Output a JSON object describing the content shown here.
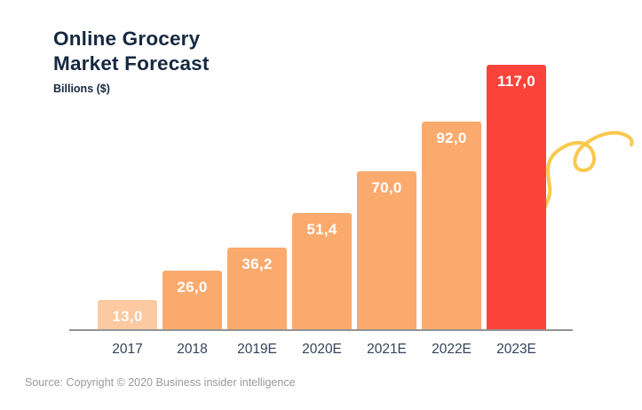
{
  "header": {
    "title_line1": "Online Grocery",
    "title_line2": "Market Forecast",
    "subtitle": "Billions ($)"
  },
  "chart_data": {
    "type": "bar",
    "title": "Online Grocery Market Forecast",
    "ylabel": "Billions ($)",
    "xlabel": "",
    "categories": [
      "2017",
      "2018",
      "2019E",
      "2020E",
      "2021E",
      "2022E",
      "2023E"
    ],
    "values": [
      13.0,
      26.0,
      36.2,
      51.4,
      70.0,
      92.0,
      117.0
    ],
    "value_labels": [
      "13,0",
      "26,0",
      "36,2",
      "51,4",
      "70,0",
      "92,0",
      "117,0"
    ],
    "bar_colors": [
      "#FCC9A0",
      "#FBAA6E",
      "#FBAA6E",
      "#FBAA6E",
      "#FBAA6E",
      "#FBAA6E",
      "#FB433C"
    ],
    "ylim": [
      0,
      120
    ],
    "grid": false,
    "legend": false,
    "label_position": "inside-top"
  },
  "colors": {
    "title_text": "#152840",
    "axis_line": "#949494",
    "x_label_text": "#33435a",
    "source_text": "#9a9a9a",
    "squiggle": "#F9C94E"
  },
  "footer": {
    "source": "Source: Copyright © 2020 Business insider intelligence"
  },
  "decoration": {
    "squiggle": "hand-drawn yellow looped doodle line emerging from behind the 2023E bar"
  }
}
